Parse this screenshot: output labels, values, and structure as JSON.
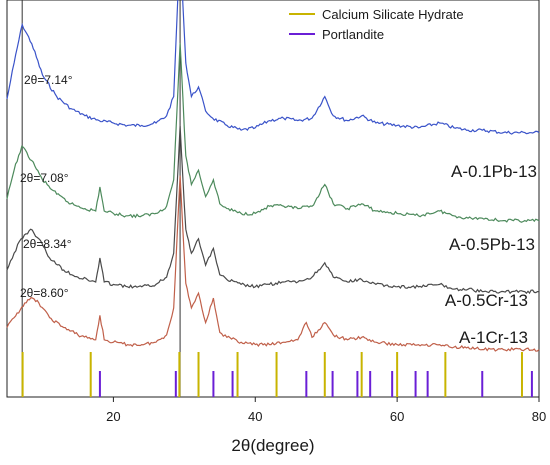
{
  "chart_data": {
    "type": "line",
    "title": "",
    "xlabel": "2θ(degree)",
    "ylabel": "",
    "xlim": [
      5,
      80
    ],
    "x_ticks": [
      20,
      40,
      60,
      80
    ],
    "grid": false,
    "legend_position": "top-right",
    "reference_lines_x": [
      7.14,
      29.4
    ],
    "legend": [
      {
        "label": "Calcium Silicate Hydrate",
        "color": "#c8b400"
      },
      {
        "label": "Portlandite",
        "color": "#6a1fd6"
      }
    ],
    "reference_peaks": {
      "csh": [
        7.2,
        16.8,
        29.3,
        32.0,
        37.5,
        43.0,
        49.8,
        55.0,
        60.0,
        66.8,
        77.6
      ],
      "portlandite": [
        18.1,
        28.8,
        34.1,
        36.8,
        47.2,
        50.9,
        54.4,
        56.2,
        59.3,
        62.6,
        64.3,
        72.0,
        79.0
      ]
    },
    "series": [
      {
        "name": "A-0.1Pb-13",
        "color": "#3a53c9",
        "peak_label": "2θ=7.14°",
        "x": [
          5,
          6,
          7.14,
          8.5,
          10,
          12,
          14,
          16,
          18,
          20,
          22,
          24,
          26,
          27.5,
          28.5,
          29.4,
          30.2,
          31,
          32,
          33,
          34,
          36,
          38,
          40,
          42,
          44,
          46,
          48,
          49.8,
          51,
          53,
          55,
          57,
          60,
          63,
          66,
          68,
          70,
          72,
          75,
          78,
          80
        ],
        "y": [
          0.35,
          0.5,
          0.66,
          0.58,
          0.45,
          0.36,
          0.31,
          0.28,
          0.26,
          0.25,
          0.24,
          0.24,
          0.25,
          0.28,
          0.36,
          1.0,
          0.5,
          0.36,
          0.4,
          0.3,
          0.27,
          0.24,
          0.22,
          0.23,
          0.26,
          0.27,
          0.26,
          0.27,
          0.36,
          0.28,
          0.26,
          0.28,
          0.25,
          0.24,
          0.23,
          0.25,
          0.23,
          0.22,
          0.22,
          0.21,
          0.21,
          0.21
        ]
      },
      {
        "name": "A-0.5Pb-13",
        "color": "#4d8a5c",
        "peak_label": "2θ=7.08°",
        "x": [
          5,
          6,
          7.08,
          8.5,
          10,
          12,
          14,
          16,
          17.5,
          18.1,
          18.7,
          20,
          22,
          24,
          26,
          27.5,
          28.5,
          29.4,
          30.2,
          31,
          32,
          33,
          34.1,
          35,
          36,
          38,
          40,
          42,
          44,
          46,
          48,
          49.8,
          51,
          53,
          55,
          57,
          60,
          63,
          66,
          68,
          70,
          72,
          75,
          78,
          80
        ],
        "y": [
          0.2,
          0.32,
          0.42,
          0.36,
          0.28,
          0.22,
          0.18,
          0.16,
          0.15,
          0.25,
          0.15,
          0.14,
          0.13,
          0.13,
          0.14,
          0.17,
          0.28,
          0.85,
          0.38,
          0.26,
          0.32,
          0.21,
          0.28,
          0.18,
          0.16,
          0.14,
          0.14,
          0.17,
          0.17,
          0.16,
          0.17,
          0.26,
          0.18,
          0.16,
          0.18,
          0.15,
          0.14,
          0.13,
          0.15,
          0.13,
          0.12,
          0.12,
          0.11,
          0.11,
          0.11
        ]
      },
      {
        "name": "A-0.5Cr-13",
        "color": "#4a4a4a",
        "peak_label": "2θ=8.34°",
        "x": [
          5,
          6,
          7,
          8.34,
          9.5,
          11,
          13,
          15,
          17.5,
          18.1,
          18.7,
          20,
          22,
          24,
          26,
          27.5,
          28.5,
          29.4,
          30.2,
          31,
          32,
          33,
          34.1,
          35,
          36,
          38,
          40,
          42,
          44,
          46,
          48,
          49.8,
          51,
          53,
          55,
          57,
          60,
          63,
          66,
          68,
          70,
          72,
          75,
          78,
          80
        ],
        "y": [
          0.15,
          0.22,
          0.28,
          0.32,
          0.28,
          0.2,
          0.15,
          0.12,
          0.1,
          0.2,
          0.1,
          0.09,
          0.08,
          0.08,
          0.09,
          0.12,
          0.22,
          0.75,
          0.32,
          0.22,
          0.28,
          0.17,
          0.24,
          0.13,
          0.11,
          0.09,
          0.08,
          0.09,
          0.1,
          0.1,
          0.12,
          0.18,
          0.12,
          0.1,
          0.11,
          0.09,
          0.08,
          0.08,
          0.09,
          0.07,
          0.07,
          0.06,
          0.06,
          0.06,
          0.06
        ]
      },
      {
        "name": "A-1Cr-13",
        "color": "#c0604a",
        "peak_label": "2θ=8.60°",
        "x": [
          5,
          6,
          7.5,
          8.6,
          9.5,
          11,
          13,
          15,
          17.5,
          18.1,
          18.7,
          20,
          22,
          24,
          26,
          27.5,
          28.5,
          29.4,
          30.2,
          31,
          32,
          33,
          34.1,
          35,
          36,
          38,
          40,
          42,
          44,
          46,
          47.2,
          48,
          49.8,
          51,
          53,
          55,
          57,
          60,
          63,
          66,
          68,
          70,
          72,
          75,
          78,
          80
        ],
        "y": [
          0.1,
          0.14,
          0.2,
          0.22,
          0.2,
          0.14,
          0.1,
          0.07,
          0.05,
          0.15,
          0.05,
          0.04,
          0.03,
          0.03,
          0.04,
          0.07,
          0.18,
          0.72,
          0.28,
          0.18,
          0.24,
          0.12,
          0.22,
          0.08,
          0.06,
          0.04,
          0.03,
          0.03,
          0.04,
          0.05,
          0.12,
          0.06,
          0.12,
          0.07,
          0.05,
          0.06,
          0.04,
          0.03,
          0.03,
          0.03,
          0.02,
          0.02,
          0.01,
          0.01,
          0.01,
          0.01
        ]
      }
    ]
  }
}
